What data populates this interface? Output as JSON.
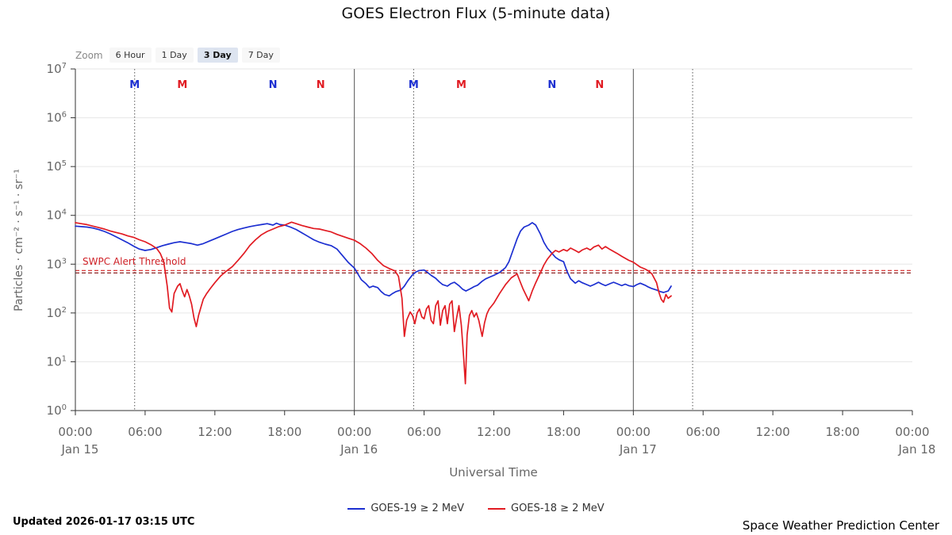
{
  "title": "GOES Electron Flux (5-minute data)",
  "toolbar": {
    "zoom_label": "Zoom",
    "buttons": [
      {
        "label": "6 Hour",
        "selected": false
      },
      {
        "label": "1 Day",
        "selected": false
      },
      {
        "label": "3 Day",
        "selected": true
      },
      {
        "label": "7 Day",
        "selected": false
      }
    ]
  },
  "footer": {
    "updated": "Updated 2026-01-17 03:15 UTC",
    "source": "Space Weather Prediction Center"
  },
  "chart_data": {
    "type": "line",
    "title": "GOES Electron Flux (5-minute data)",
    "x_axis": {
      "title": "Universal Time",
      "range_hours": [
        0,
        72
      ],
      "tick_interval_hours": 6,
      "time_tick_labels": [
        "00:00",
        "06:00",
        "12:00",
        "18:00"
      ],
      "day_labels": [
        "Jan 15",
        "Jan 16",
        "Jan 17",
        "Jan 18"
      ]
    },
    "y_axis": {
      "title": "Particles · cm⁻² · s⁻¹ · sr⁻¹",
      "scale": "log10",
      "exponent_ticks": [
        0,
        1,
        2,
        3,
        4,
        5,
        6,
        7
      ]
    },
    "threshold": {
      "label": "SWPC Alert Threshold",
      "label_color": "#cf2026",
      "lines": [
        {
          "log_value": 2.87,
          "color": "#d42020"
        },
        {
          "log_value": 2.82,
          "color": "#8b2020"
        }
      ]
    },
    "day_boundary_lines_hours": [
      24,
      48
    ],
    "dotted_lines_hours": [
      5.1,
      29.1,
      53.1
    ],
    "satellite_markers": [
      {
        "hour": 5.1,
        "label": "M",
        "color": "#1c2fd1"
      },
      {
        "hour": 9.2,
        "label": "M",
        "color": "#e11b22"
      },
      {
        "hour": 17.0,
        "label": "N",
        "color": "#1c2fd1"
      },
      {
        "hour": 21.1,
        "label": "N",
        "color": "#e11b22"
      },
      {
        "hour": 29.1,
        "label": "M",
        "color": "#1c2fd1"
      },
      {
        "hour": 33.2,
        "label": "M",
        "color": "#e11b22"
      },
      {
        "hour": 41.0,
        "label": "N",
        "color": "#1c2fd1"
      },
      {
        "hour": 45.1,
        "label": "N",
        "color": "#e11b22"
      }
    ],
    "series": [
      {
        "name": "GOES-19 ≥ 2 MeV",
        "color": "#1c2fd1",
        "points": [
          [
            0,
            3.78
          ],
          [
            0.5,
            3.77
          ],
          [
            1,
            3.76
          ],
          [
            1.5,
            3.74
          ],
          [
            2,
            3.71
          ],
          [
            2.5,
            3.67
          ],
          [
            3,
            3.62
          ],
          [
            3.5,
            3.56
          ],
          [
            4,
            3.5
          ],
          [
            4.5,
            3.44
          ],
          [
            5,
            3.37
          ],
          [
            5.5,
            3.31
          ],
          [
            6,
            3.28
          ],
          [
            6.5,
            3.3
          ],
          [
            7,
            3.34
          ],
          [
            7.5,
            3.38
          ],
          [
            8,
            3.41
          ],
          [
            8.5,
            3.44
          ],
          [
            9,
            3.46
          ],
          [
            9.5,
            3.44
          ],
          [
            10,
            3.42
          ],
          [
            10.5,
            3.39
          ],
          [
            11,
            3.42
          ],
          [
            11.5,
            3.47
          ],
          [
            12,
            3.52
          ],
          [
            12.5,
            3.57
          ],
          [
            13,
            3.62
          ],
          [
            13.5,
            3.67
          ],
          [
            14,
            3.71
          ],
          [
            14.5,
            3.74
          ],
          [
            15,
            3.77
          ],
          [
            15.5,
            3.79
          ],
          [
            16,
            3.81
          ],
          [
            16.5,
            3.83
          ],
          [
            17,
            3.8
          ],
          [
            17.3,
            3.84
          ],
          [
            17.6,
            3.81
          ],
          [
            18,
            3.8
          ],
          [
            18.5,
            3.76
          ],
          [
            19,
            3.71
          ],
          [
            19.5,
            3.64
          ],
          [
            20,
            3.57
          ],
          [
            20.5,
            3.5
          ],
          [
            21,
            3.45
          ],
          [
            21.5,
            3.41
          ],
          [
            22,
            3.38
          ],
          [
            22.5,
            3.31
          ],
          [
            23,
            3.17
          ],
          [
            23.5,
            3.03
          ],
          [
            24,
            2.92
          ],
          [
            24.3,
            2.8
          ],
          [
            24.6,
            2.68
          ],
          [
            25,
            2.6
          ],
          [
            25.3,
            2.52
          ],
          [
            25.6,
            2.55
          ],
          [
            26,
            2.52
          ],
          [
            26.3,
            2.44
          ],
          [
            26.6,
            2.38
          ],
          [
            27,
            2.35
          ],
          [
            27.3,
            2.4
          ],
          [
            27.6,
            2.44
          ],
          [
            28,
            2.47
          ],
          [
            28.3,
            2.55
          ],
          [
            28.6,
            2.66
          ],
          [
            29,
            2.78
          ],
          [
            29.3,
            2.84
          ],
          [
            29.6,
            2.87
          ],
          [
            30,
            2.88
          ],
          [
            30.3,
            2.83
          ],
          [
            30.6,
            2.77
          ],
          [
            31,
            2.71
          ],
          [
            31.3,
            2.64
          ],
          [
            31.6,
            2.58
          ],
          [
            32,
            2.55
          ],
          [
            32.3,
            2.6
          ],
          [
            32.6,
            2.63
          ],
          [
            33,
            2.56
          ],
          [
            33.3,
            2.49
          ],
          [
            33.6,
            2.45
          ],
          [
            34,
            2.5
          ],
          [
            34.3,
            2.54
          ],
          [
            34.6,
            2.57
          ],
          [
            35,
            2.65
          ],
          [
            35.3,
            2.7
          ],
          [
            35.6,
            2.73
          ],
          [
            36,
            2.77
          ],
          [
            36.5,
            2.83
          ],
          [
            37,
            2.93
          ],
          [
            37.3,
            3.05
          ],
          [
            37.6,
            3.25
          ],
          [
            38,
            3.52
          ],
          [
            38.3,
            3.68
          ],
          [
            38.6,
            3.76
          ],
          [
            39,
            3.8
          ],
          [
            39.3,
            3.85
          ],
          [
            39.6,
            3.8
          ],
          [
            40,
            3.62
          ],
          [
            40.3,
            3.45
          ],
          [
            40.6,
            3.33
          ],
          [
            41,
            3.22
          ],
          [
            41.3,
            3.14
          ],
          [
            41.6,
            3.09
          ],
          [
            42,
            3.05
          ],
          [
            42.3,
            2.85
          ],
          [
            42.6,
            2.7
          ],
          [
            43,
            2.61
          ],
          [
            43.3,
            2.66
          ],
          [
            43.6,
            2.62
          ],
          [
            44,
            2.58
          ],
          [
            44.3,
            2.55
          ],
          [
            44.6,
            2.58
          ],
          [
            45,
            2.63
          ],
          [
            45.3,
            2.59
          ],
          [
            45.6,
            2.56
          ],
          [
            46,
            2.6
          ],
          [
            46.3,
            2.63
          ],
          [
            46.6,
            2.6
          ],
          [
            47,
            2.56
          ],
          [
            47.3,
            2.59
          ],
          [
            47.6,
            2.56
          ],
          [
            48,
            2.54
          ],
          [
            48.3,
            2.58
          ],
          [
            48.6,
            2.61
          ],
          [
            49,
            2.57
          ],
          [
            49.3,
            2.53
          ],
          [
            49.6,
            2.5
          ],
          [
            50,
            2.47
          ],
          [
            50.3,
            2.44
          ],
          [
            50.6,
            2.42
          ],
          [
            51,
            2.45
          ],
          [
            51.25,
            2.55
          ]
        ]
      },
      {
        "name": "GOES-18 ≥ 2 MeV",
        "color": "#e11b22",
        "points": [
          [
            0,
            3.85
          ],
          [
            0.5,
            3.83
          ],
          [
            1,
            3.81
          ],
          [
            1.5,
            3.78
          ],
          [
            2,
            3.75
          ],
          [
            2.5,
            3.72
          ],
          [
            3,
            3.68
          ],
          [
            3.5,
            3.65
          ],
          [
            4,
            3.62
          ],
          [
            4.5,
            3.58
          ],
          [
            5,
            3.55
          ],
          [
            5.5,
            3.5
          ],
          [
            6,
            3.46
          ],
          [
            6.5,
            3.4
          ],
          [
            7,
            3.32
          ],
          [
            7.3,
            3.22
          ],
          [
            7.6,
            3.05
          ],
          [
            7.9,
            2.55
          ],
          [
            8.1,
            2.1
          ],
          [
            8.3,
            2.02
          ],
          [
            8.5,
            2.4
          ],
          [
            8.8,
            2.55
          ],
          [
            9,
            2.6
          ],
          [
            9.2,
            2.45
          ],
          [
            9.4,
            2.33
          ],
          [
            9.6,
            2.48
          ],
          [
            9.8,
            2.35
          ],
          [
            10,
            2.18
          ],
          [
            10.2,
            1.9
          ],
          [
            10.4,
            1.72
          ],
          [
            10.6,
            1.95
          ],
          [
            10.8,
            2.12
          ],
          [
            11,
            2.28
          ],
          [
            11.3,
            2.4
          ],
          [
            11.6,
            2.5
          ],
          [
            12,
            2.62
          ],
          [
            12.5,
            2.76
          ],
          [
            13,
            2.86
          ],
          [
            13.5,
            2.95
          ],
          [
            14,
            3.08
          ],
          [
            14.5,
            3.22
          ],
          [
            15,
            3.38
          ],
          [
            15.5,
            3.5
          ],
          [
            16,
            3.6
          ],
          [
            16.5,
            3.67
          ],
          [
            17,
            3.72
          ],
          [
            17.5,
            3.77
          ],
          [
            18,
            3.8
          ],
          [
            18.3,
            3.83
          ],
          [
            18.6,
            3.86
          ],
          [
            19,
            3.83
          ],
          [
            19.5,
            3.79
          ],
          [
            20,
            3.76
          ],
          [
            20.5,
            3.73
          ],
          [
            21,
            3.72
          ],
          [
            21.5,
            3.69
          ],
          [
            22,
            3.66
          ],
          [
            22.5,
            3.61
          ],
          [
            23,
            3.57
          ],
          [
            23.5,
            3.53
          ],
          [
            24,
            3.49
          ],
          [
            24.5,
            3.42
          ],
          [
            25,
            3.33
          ],
          [
            25.5,
            3.22
          ],
          [
            26,
            3.08
          ],
          [
            26.5,
            2.97
          ],
          [
            27,
            2.91
          ],
          [
            27.5,
            2.86
          ],
          [
            27.8,
            2.75
          ],
          [
            28.1,
            2.3
          ],
          [
            28.3,
            1.52
          ],
          [
            28.5,
            1.85
          ],
          [
            28.8,
            2.02
          ],
          [
            29,
            1.95
          ],
          [
            29.2,
            1.78
          ],
          [
            29.4,
            2.0
          ],
          [
            29.6,
            2.08
          ],
          [
            29.8,
            1.92
          ],
          [
            30,
            1.88
          ],
          [
            30.2,
            2.08
          ],
          [
            30.4,
            2.15
          ],
          [
            30.6,
            1.85
          ],
          [
            30.8,
            1.78
          ],
          [
            31,
            2.15
          ],
          [
            31.2,
            2.25
          ],
          [
            31.4,
            1.75
          ],
          [
            31.6,
            2.05
          ],
          [
            31.8,
            2.15
          ],
          [
            32,
            1.78
          ],
          [
            32.2,
            2.18
          ],
          [
            32.4,
            2.25
          ],
          [
            32.6,
            1.62
          ],
          [
            32.8,
            1.9
          ],
          [
            33,
            2.15
          ],
          [
            33.2,
            1.75
          ],
          [
            33.4,
            1.1
          ],
          [
            33.55,
            0.55
          ],
          [
            33.7,
            1.55
          ],
          [
            33.9,
            1.95
          ],
          [
            34.1,
            2.05
          ],
          [
            34.3,
            1.92
          ],
          [
            34.5,
            2.0
          ],
          [
            34.7,
            1.85
          ],
          [
            35,
            1.52
          ],
          [
            35.2,
            1.8
          ],
          [
            35.4,
            1.98
          ],
          [
            35.6,
            2.08
          ],
          [
            36,
            2.2
          ],
          [
            36.5,
            2.4
          ],
          [
            37,
            2.58
          ],
          [
            37.5,
            2.72
          ],
          [
            38,
            2.8
          ],
          [
            38.2,
            2.68
          ],
          [
            38.5,
            2.5
          ],
          [
            38.8,
            2.35
          ],
          [
            39,
            2.25
          ],
          [
            39.3,
            2.45
          ],
          [
            39.6,
            2.62
          ],
          [
            40,
            2.82
          ],
          [
            40.3,
            2.98
          ],
          [
            40.6,
            3.1
          ],
          [
            41,
            3.22
          ],
          [
            41.3,
            3.28
          ],
          [
            41.6,
            3.25
          ],
          [
            42,
            3.3
          ],
          [
            42.3,
            3.27
          ],
          [
            42.6,
            3.33
          ],
          [
            43,
            3.28
          ],
          [
            43.3,
            3.24
          ],
          [
            43.6,
            3.29
          ],
          [
            44,
            3.33
          ],
          [
            44.3,
            3.29
          ],
          [
            44.6,
            3.35
          ],
          [
            45,
            3.39
          ],
          [
            45.3,
            3.31
          ],
          [
            45.6,
            3.36
          ],
          [
            46,
            3.3
          ],
          [
            46.3,
            3.26
          ],
          [
            46.6,
            3.22
          ],
          [
            47,
            3.16
          ],
          [
            47.3,
            3.12
          ],
          [
            47.6,
            3.08
          ],
          [
            48,
            3.04
          ],
          [
            48.3,
            2.99
          ],
          [
            48.6,
            2.94
          ],
          [
            49,
            2.9
          ],
          [
            49.3,
            2.86
          ],
          [
            49.6,
            2.8
          ],
          [
            50,
            2.62
          ],
          [
            50.2,
            2.42
          ],
          [
            50.4,
            2.28
          ],
          [
            50.6,
            2.22
          ],
          [
            50.8,
            2.38
          ],
          [
            51,
            2.3
          ],
          [
            51.25,
            2.35
          ]
        ]
      }
    ]
  }
}
